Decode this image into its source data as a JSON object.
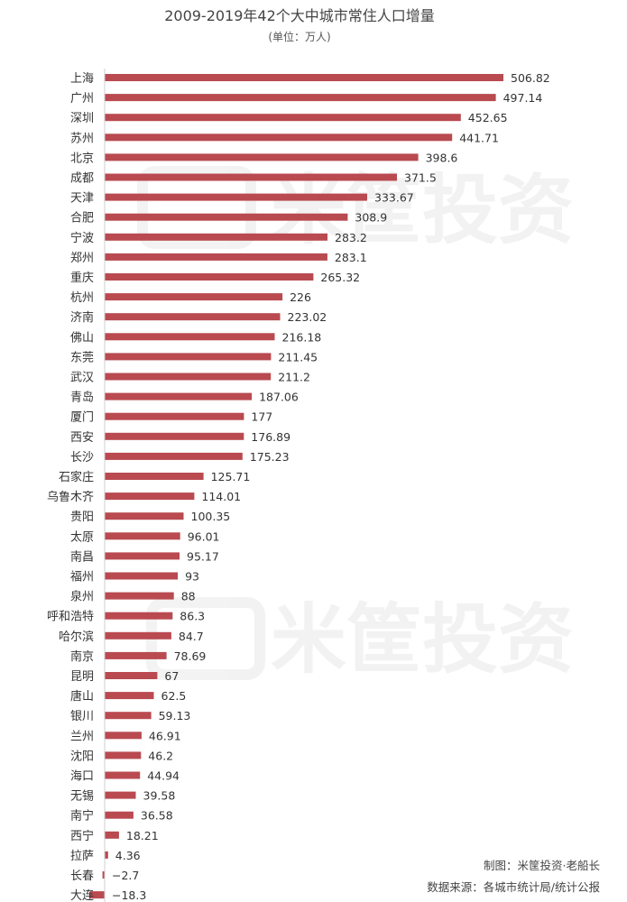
{
  "chart_data": {
    "type": "bar",
    "orientation": "horizontal",
    "title": "2009-2019年42个大中城市常住人口增量",
    "subtitle": "(单位：万人)",
    "categories": [
      "上海",
      "广州",
      "深圳",
      "苏州",
      "北京",
      "成都",
      "天津",
      "合肥",
      "宁波",
      "郑州",
      "重庆",
      "杭州",
      "济南",
      "佛山",
      "东莞",
      "武汉",
      "青岛",
      "厦门",
      "西安",
      "长沙",
      "石家庄",
      "乌鲁木齐",
      "贵阳",
      "太原",
      "南昌",
      "福州",
      "泉州",
      "呼和浩特",
      "哈尔滨",
      "南京",
      "昆明",
      "唐山",
      "银川",
      "兰州",
      "沈阳",
      "海口",
      "无锡",
      "南宁",
      "西宁",
      "拉萨",
      "长春",
      "大连"
    ],
    "values": [
      506.82,
      497.14,
      452.65,
      441.71,
      398.6,
      371.5,
      333.67,
      308.9,
      283.2,
      283.1,
      265.32,
      226,
      223.02,
      216.18,
      211.45,
      211.2,
      187.06,
      177,
      176.89,
      175.23,
      125.71,
      114.01,
      100.35,
      96.01,
      95.17,
      93,
      88,
      86.3,
      84.7,
      78.69,
      67,
      62.5,
      59.13,
      46.91,
      46.2,
      44.94,
      39.58,
      36.58,
      18.21,
      4.36,
      -2.7,
      -18.3
    ],
    "value_labels": [
      "506.82",
      "497.14",
      "452.65",
      "441.71",
      "398.6",
      "371.5",
      "333.67",
      "308.9",
      "283.2",
      "283.1",
      "265.32",
      "226",
      "223.02",
      "216.18",
      "211.45",
      "211.2",
      "187.06",
      "177",
      "176.89",
      "175.23",
      "125.71",
      "114.01",
      "100.35",
      "96.01",
      "95.17",
      "93",
      "88",
      "86.3",
      "84.7",
      "78.69",
      "67",
      "62.5",
      "59.13",
      "46.91",
      "46.2",
      "44.94",
      "39.58",
      "36.58",
      "18.21",
      "4.36",
      "−2.7",
      "−18.3"
    ],
    "bar_color": "#b94a50",
    "grid": false,
    "legend": "none"
  },
  "credits": {
    "maker": "制图：米筐投资·老船长",
    "source": "数据来源：各城市统计局/统计公报"
  },
  "watermark": {
    "text": "米筐投资"
  }
}
